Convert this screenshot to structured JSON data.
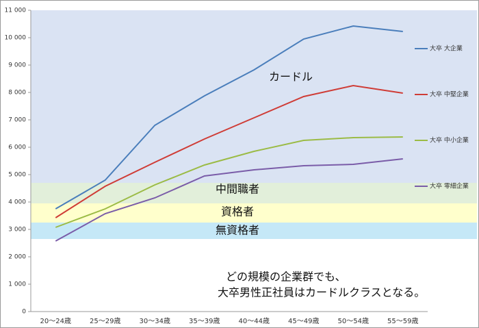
{
  "chart_data": {
    "type": "line",
    "categories": [
      "20〜24歳",
      "25〜29歳",
      "30〜34歳",
      "35〜39歳",
      "40〜44歳",
      "45〜49歳",
      "50〜54歳",
      "55〜59歳"
    ],
    "series": [
      {
        "name": "大卒 大企業",
        "color": "#4a7ebb",
        "values": [
          3750,
          4800,
          6800,
          7875,
          8825,
          9950,
          10425,
          10225
        ]
      },
      {
        "name": "大卒 中堅企業",
        "color": "#cf3c36",
        "values": [
          3425,
          4575,
          5450,
          6300,
          7075,
          7850,
          8250,
          7975
        ]
      },
      {
        "name": "大卒 中小企業",
        "color": "#9bbb45",
        "values": [
          3075,
          3750,
          4625,
          5350,
          5850,
          6250,
          6350,
          6375
        ]
      },
      {
        "name": "大卒 零細企業",
        "color": "#7a5ca8",
        "values": [
          2575,
          3575,
          4150,
          4950,
          5175,
          5325,
          5375,
          5575
        ]
      }
    ],
    "ylim": [
      0,
      11000
    ],
    "yticks": [
      0,
      {
        "value": 1000,
        "label": "1 000"
      },
      {
        "value": 2000,
        "label": "2 000"
      },
      {
        "value": 3000,
        "label": "3 000"
      },
      {
        "value": 4000,
        "label": "4 000"
      },
      {
        "value": 5000,
        "label": "5 000"
      },
      {
        "value": 6000,
        "label": "6 000"
      },
      {
        "value": 7000,
        "label": "7 000"
      },
      {
        "value": 8000,
        "label": "8 000"
      },
      {
        "value": 9000,
        "label": "9 000"
      },
      {
        "value": 10000,
        "label": "10 000"
      },
      {
        "value": 11000,
        "label": "11 000"
      }
    ],
    "bands": [
      {
        "label": "カードル",
        "from": 4700,
        "to": 11000,
        "color": "#dae3f3"
      },
      {
        "label": "中間職者",
        "from": 3950,
        "to": 4700,
        "color": "#e2efda"
      },
      {
        "label": "資格者",
        "from": 3250,
        "to": 3950,
        "color": "#ffffcc"
      },
      {
        "label": "無資格者",
        "from": 2650,
        "to": 3250,
        "color": "#c5e8f7"
      }
    ],
    "annotation": [
      "どの規模の企業群でも、",
      "大卒男性正社員はカードルクラスとなる。"
    ],
    "legend": "right"
  }
}
